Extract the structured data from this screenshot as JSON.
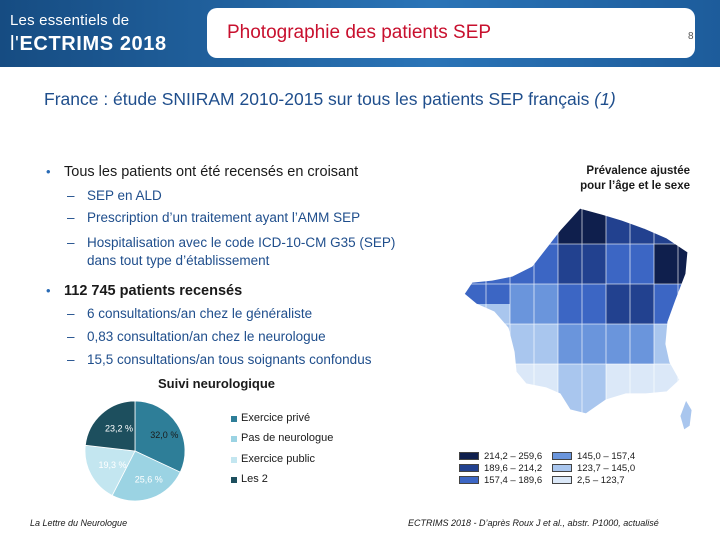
{
  "header": {
    "brand_line1": "Les essentiels de",
    "brand_prefix": "l'",
    "brand_line2": "ECTRIMS 2018",
    "title": "Photographie des patients SEP",
    "page_number": "8",
    "colors": {
      "band": "#1f5f9e",
      "title": "#c8102e"
    }
  },
  "study": {
    "title": "France : étude SNIIRAM 2010-2015 sur tous les patients SEP français",
    "ref": "(1)"
  },
  "bullets": {
    "b1": "Tous les patients ont été recensés en croisant",
    "b1_subs": [
      "SEP en ALD",
      "Prescription d’un traitement ayant l’AMM SEP",
      "Hospitalisation avec le code ICD-10-CM G35 (SEP)",
      "dans tout type d’établissement"
    ],
    "b2": "112 745 patients recensés",
    "b2_subs": [
      "6 consultations/an chez le généraliste",
      "0,83 consultation/an chez le neurologue",
      "15,5 consultations/an tous soignants confondus"
    ],
    "dot": "•",
    "dash": "–"
  },
  "map": {
    "caption_line1": "Prévalence ajustée",
    "caption_line2": "pour l’âge et le sexe",
    "legend": [
      {
        "label": "214,2 – 259,6",
        "color": "#0f1f4d"
      },
      {
        "label": "189,6 – 214,2",
        "color": "#22418f"
      },
      {
        "label": "157,4 – 189,6",
        "color": "#3c66c4"
      },
      {
        "label": "145,0 – 157,4",
        "color": "#6a95dc"
      },
      {
        "label": "123,7 – 145,0",
        "color": "#a9c6ee"
      },
      {
        "label": "2,5 – 123,7",
        "color": "#dbe8f8"
      }
    ]
  },
  "chart_data": {
    "type": "pie",
    "title": "Suivi neurologique",
    "labels": [
      "Exercice privé",
      "Pas de neurologue",
      "Exercice public",
      "Les 2"
    ],
    "values": [
      32.0,
      25.6,
      19.3,
      23.2
    ],
    "value_labels": [
      "32,0 %",
      "25,6 %",
      "19,3 %",
      "23,2 %"
    ],
    "colors": [
      "#2e7e98",
      "#9bd3e3",
      "#c3e6f0",
      "#1d4f5e"
    ]
  },
  "footer": {
    "left": "La Lettre du Neurologue",
    "right": "ECTRIMS 2018 - D’après Roux J et al., abstr. P1000, actualisé"
  }
}
